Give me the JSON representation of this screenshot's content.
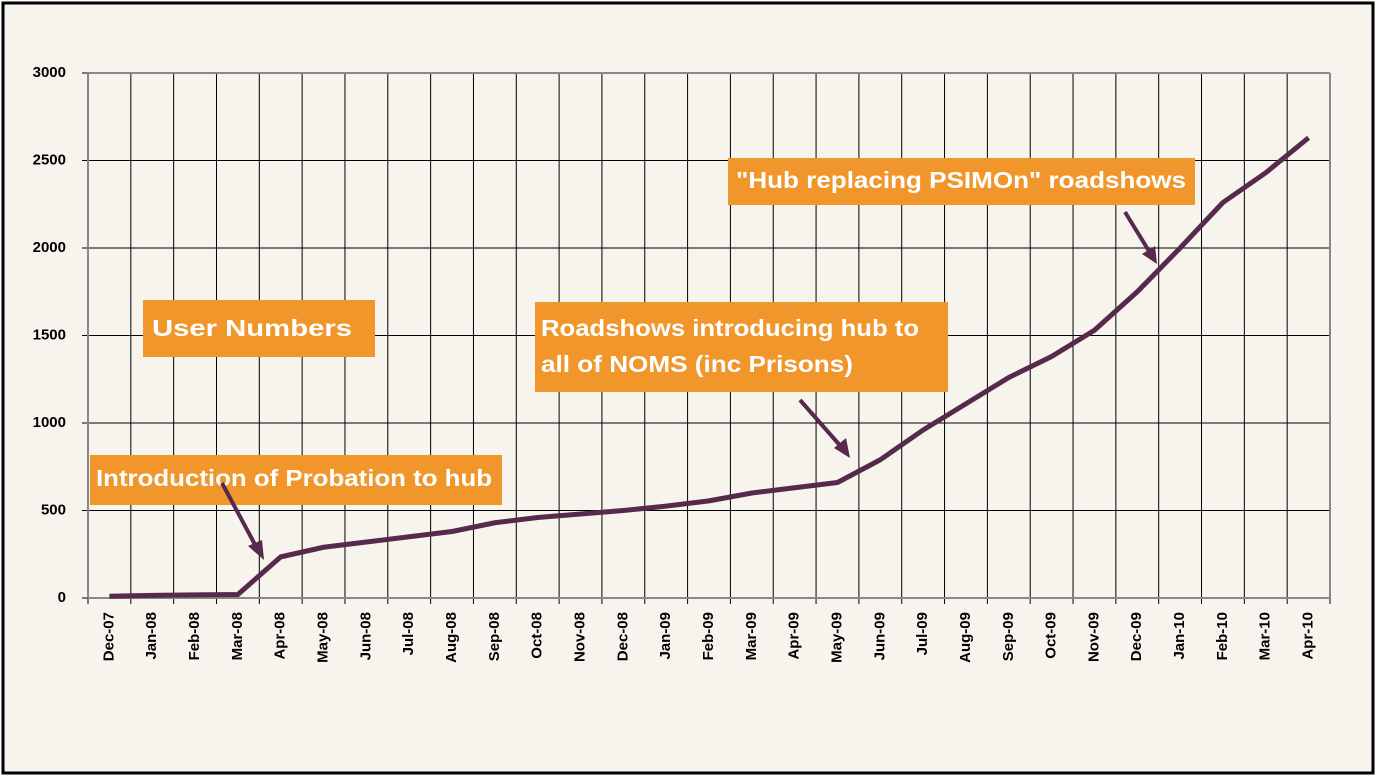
{
  "chart_data": {
    "type": "line",
    "categories": [
      "Dec-07",
      "Jan-08",
      "Feb-08",
      "Mar-08",
      "Apr-08",
      "May-08",
      "Jun-08",
      "Jul-08",
      "Aug-08",
      "Sep-08",
      "Oct-08",
      "Nov-08",
      "Dec-08",
      "Jan-09",
      "Feb-09",
      "Mar-09",
      "Apr-09",
      "May-09",
      "Jun-09",
      "Jul-09",
      "Aug-09",
      "Sep-09",
      "Oct-09",
      "Nov-09",
      "Dec-09",
      "Jan-10",
      "Feb-10",
      "Mar-10",
      "Apr-10"
    ],
    "series": [
      {
        "name": "User Numbers",
        "color": "#57294c",
        "values": [
          10,
          15,
          18,
          20,
          235,
          290,
          320,
          350,
          380,
          430,
          460,
          480,
          500,
          525,
          555,
          600,
          630,
          660,
          790,
          960,
          1110,
          1260,
          1380,
          1530,
          1750,
          2000,
          2260,
          2430,
          2630
        ]
      }
    ],
    "ylim": [
      0,
      3000
    ],
    "yticks": [
      0,
      500,
      1000,
      1500,
      2000,
      2500,
      3000
    ],
    "grid": true,
    "annotations": [
      {
        "lines": [
          "Introduction of Probation to hub"
        ]
      },
      {
        "lines": [
          "Roadshows introducing hub to",
          "all of NOMS (inc Prisons)"
        ]
      },
      {
        "lines": [
          "\"Hub replacing PSIMOn\" roadshows"
        ]
      }
    ]
  }
}
